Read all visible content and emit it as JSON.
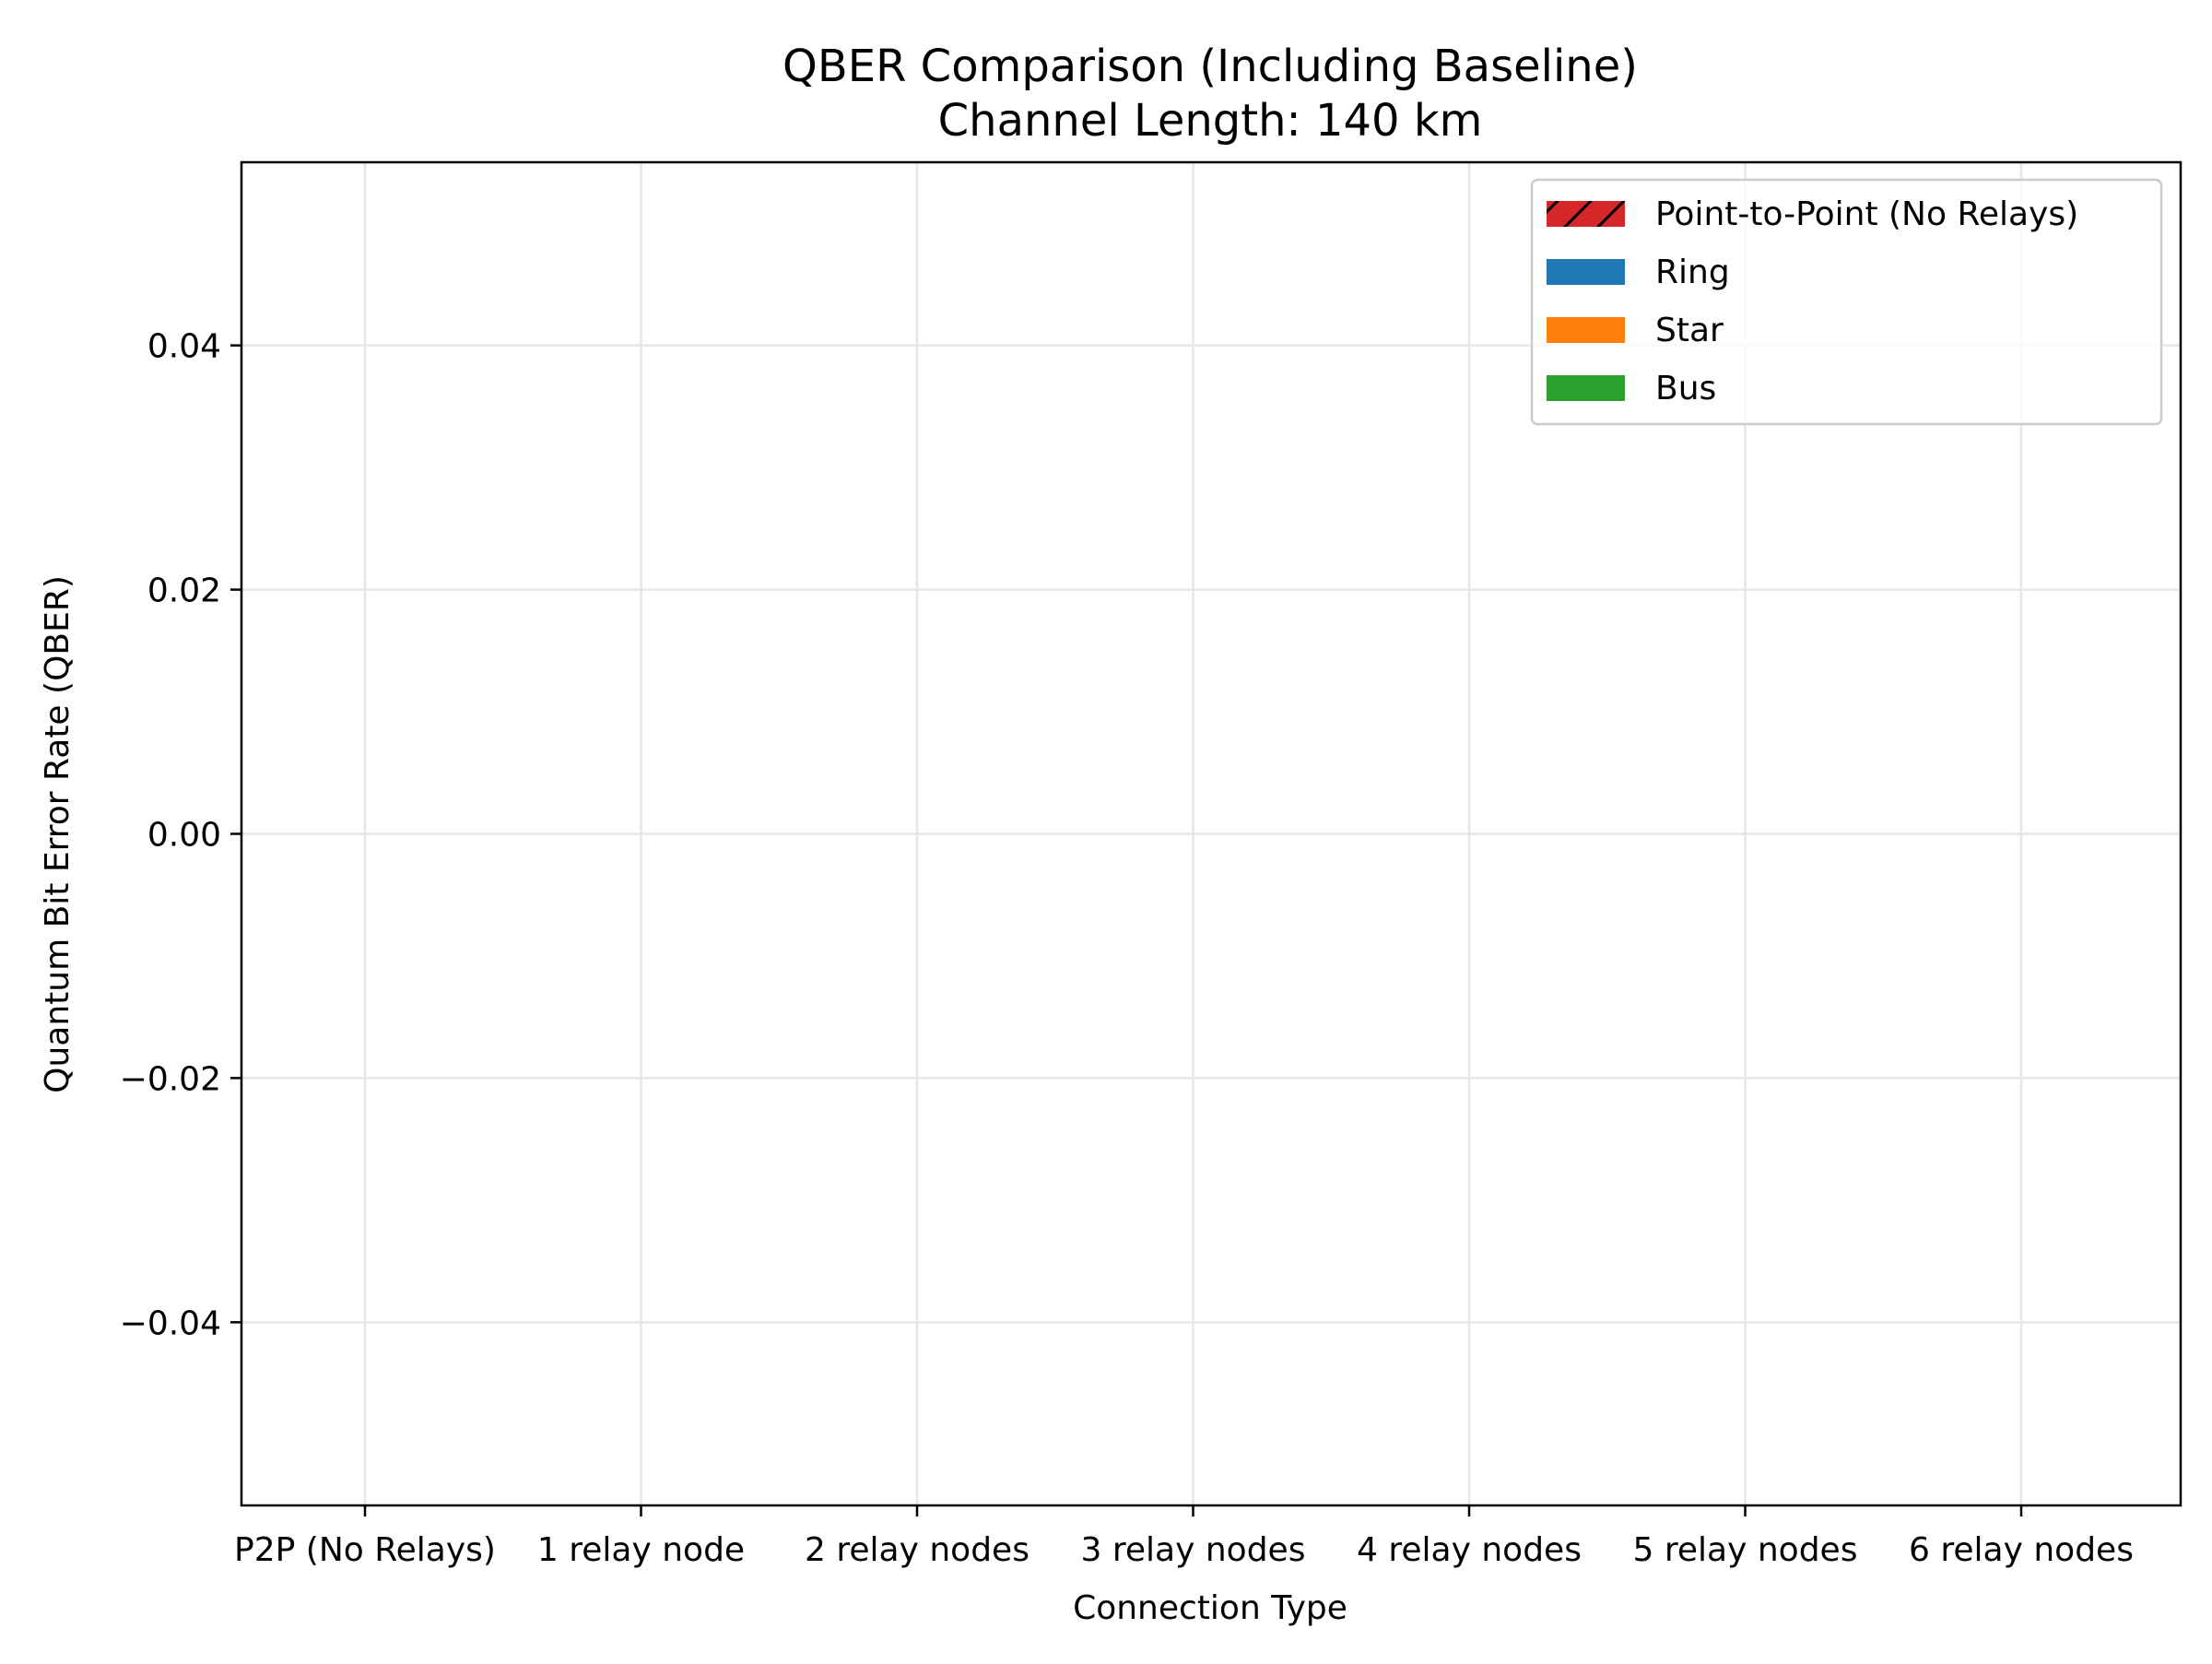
{
  "chart_data": {
    "type": "bar",
    "title": "QBER Comparison (Including Baseline)",
    "subtitle": "Channel Length: 140 km",
    "xlabel": "Connection Type",
    "ylabel": "Quantum Bit Error Rate (QBER)",
    "categories": [
      "P2P (No Relays)",
      "1 relay node",
      "2 relay nodes",
      "3 relay nodes",
      "4 relay nodes",
      "5 relay nodes",
      "6 relay nodes"
    ],
    "ylim": [
      -0.055,
      0.055
    ],
    "yticks": [
      -0.04,
      -0.02,
      0.0,
      0.02,
      0.04
    ],
    "ytick_labels": [
      "−0.04",
      "−0.02",
      "0.00",
      "0.02",
      "0.04"
    ],
    "grid": true,
    "legend_position": "top-right",
    "series": [
      {
        "name": "Point-to-Point (No Relays)",
        "color": "#d62728",
        "hatch": true,
        "values": [
          null,
          null,
          null,
          null,
          null,
          null,
          null
        ]
      },
      {
        "name": "Ring",
        "color": "#1f77b4",
        "hatch": false,
        "values": [
          null,
          null,
          null,
          null,
          null,
          null,
          null
        ]
      },
      {
        "name": "Star",
        "color": "#ff7f0e",
        "hatch": false,
        "values": [
          null,
          null,
          null,
          null,
          null,
          null,
          null
        ]
      },
      {
        "name": "Bus",
        "color": "#2ca02c",
        "hatch": false,
        "values": [
          null,
          null,
          null,
          null,
          null,
          null,
          null
        ]
      }
    ]
  }
}
